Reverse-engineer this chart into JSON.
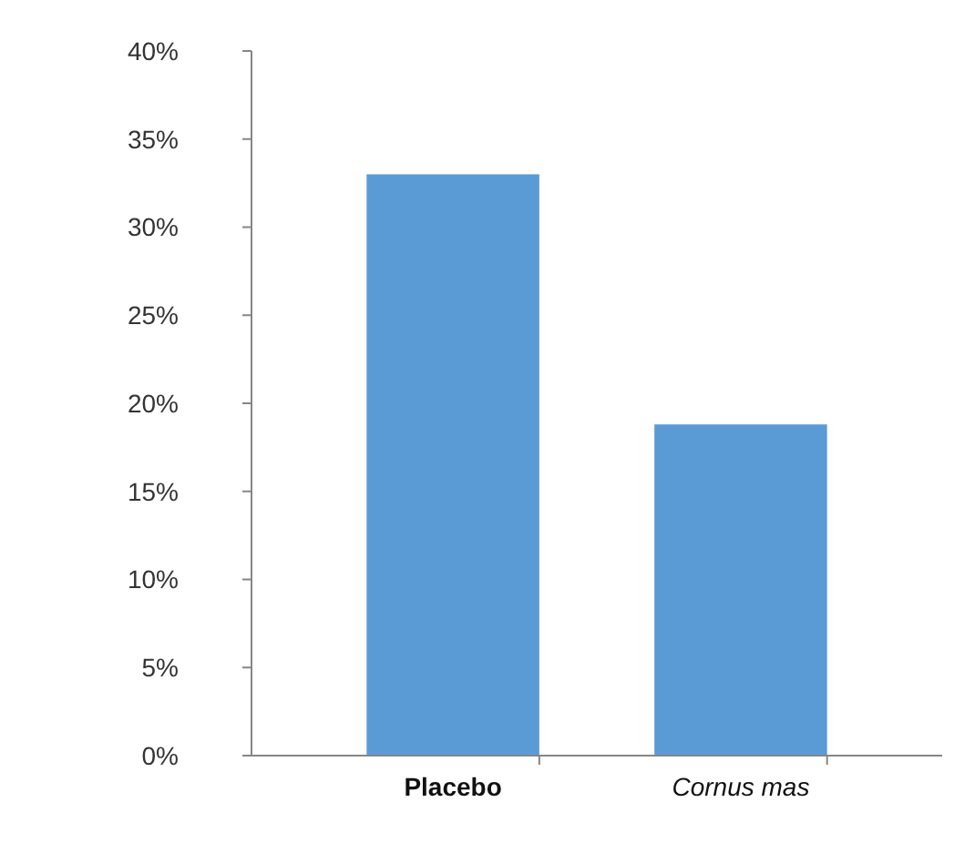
{
  "chart_data": {
    "type": "bar",
    "categories": [
      "Placebo",
      "Cornus mas"
    ],
    "values": [
      33,
      18.8
    ],
    "color": "#5b9bd5",
    "ylim": [
      0,
      40
    ],
    "yticks": [
      {
        "value": 0,
        "label": "0%"
      },
      {
        "value": 5,
        "label": "5%"
      },
      {
        "value": 10,
        "label": "10%"
      },
      {
        "value": 15,
        "label": "15%"
      },
      {
        "value": 20,
        "label": "20%"
      },
      {
        "value": 25,
        "label": "25%"
      },
      {
        "value": 30,
        "label": "30%"
      },
      {
        "value": 35,
        "label": "35%"
      },
      {
        "value": 40,
        "label": "40%"
      }
    ],
    "grid": false
  }
}
